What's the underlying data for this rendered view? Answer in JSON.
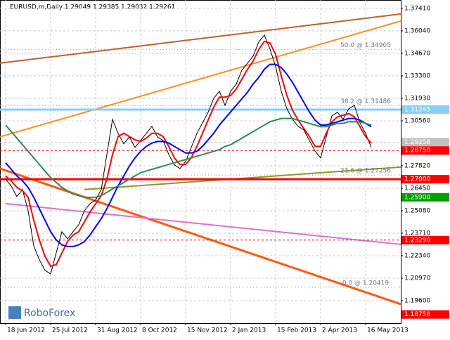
{
  "chart_data": {
    "type": "line",
    "title": "EURUSD,m,Daily  1.29049 1.29385 1.29032 1.29261",
    "logo": "RoboForex",
    "xlim": [
      -1,
      70.25
    ],
    "ylim": [
      1.1823,
      1.3792
    ],
    "grid": true,
    "xticks": [
      {
        "value": 0,
        "label": "18 Jun 2012"
      },
      {
        "value": 8,
        "label": "25 Jul 2012"
      },
      {
        "value": 16,
        "label": "31 Aug 2012"
      },
      {
        "value": 24,
        "label": "8 Oct 2012"
      },
      {
        "value": 32,
        "label": "15 Nov 2012"
      },
      {
        "value": 40,
        "label": "2 Jan 2013"
      },
      {
        "value": 48,
        "label": "15 Feb 2013"
      },
      {
        "value": 56,
        "label": "2 Apr 2013"
      },
      {
        "value": 64,
        "label": "16 May 2013"
      }
    ],
    "yticks": [
      {
        "value": 1.3741,
        "label": "1.37410"
      },
      {
        "value": 1.3604,
        "label": "1.36040"
      },
      {
        "value": 1.3467,
        "label": "1.34670"
      },
      {
        "value": 1.333,
        "label": "1.33300"
      },
      {
        "value": 1.3193,
        "label": "1.31930"
      },
      {
        "value": 1.3056,
        "label": "1.30560"
      },
      {
        "value": 1.2782,
        "label": "1.27820"
      },
      {
        "value": 1.2645,
        "label": "1.26450"
      },
      {
        "value": 1.2508,
        "label": "1.25080"
      },
      {
        "value": 1.2371,
        "label": "1.23710"
      },
      {
        "value": 1.2234,
        "label": "1.22340"
      },
      {
        "value": 1.2097,
        "label": "1.20970"
      },
      {
        "value": 1.196,
        "label": "1.19600"
      }
    ],
    "x": [
      0,
      1,
      2,
      3,
      4,
      5,
      6,
      7,
      8,
      9,
      10,
      11,
      12,
      13,
      14,
      15,
      16,
      17,
      18,
      19,
      20,
      21,
      22,
      23,
      24,
      25,
      26,
      27,
      28,
      29,
      30,
      31,
      32,
      33,
      34,
      35,
      36,
      37,
      38,
      39,
      40,
      41,
      42,
      43,
      44,
      45,
      46,
      47,
      48,
      49,
      50,
      51,
      52,
      53,
      54,
      55,
      56,
      57,
      58,
      59,
      60,
      61,
      62,
      63,
      64,
      65
    ],
    "series": [
      {
        "color": "#000000",
        "values": [
          1.2701,
          1.2658,
          1.2594,
          1.2637,
          1.2508,
          1.2294,
          1.2209,
          1.2145,
          1.2123,
          1.2252,
          1.238,
          1.2337,
          1.238,
          1.2423,
          1.2508,
          1.2551,
          1.2573,
          1.2637,
          1.2851,
          1.3065,
          1.2979,
          1.2915,
          1.2958,
          1.2894,
          1.2936,
          1.2979,
          1.3022,
          1.2958,
          1.2936,
          1.2851,
          1.2787,
          1.2765,
          1.2808,
          1.2894,
          1.2979,
          1.3043,
          1.3108,
          1.3193,
          1.3236,
          1.315,
          1.3236,
          1.3279,
          1.3364,
          1.3407,
          1.345,
          1.3536,
          1.3578,
          1.3493,
          1.3386,
          1.3236,
          1.3129,
          1.3065,
          1.3022,
          1.3001,
          1.2936,
          1.2872,
          1.283,
          1.2958,
          1.3086,
          1.3108,
          1.3065,
          1.3129,
          1.315,
          1.3043,
          1.2979,
          1.2894
        ]
      },
      {
        "color": "#ff0000",
        "values": [
          1.272,
          1.269,
          1.265,
          1.263,
          1.259,
          1.245,
          1.233,
          1.223,
          1.217,
          1.218,
          1.225,
          1.232,
          1.236,
          1.238,
          1.244,
          1.25,
          1.255,
          1.26,
          1.27,
          1.285,
          1.296,
          1.298,
          1.296,
          1.294,
          1.293,
          1.295,
          1.298,
          1.298,
          1.296,
          1.29,
          1.283,
          1.279,
          1.279,
          1.283,
          1.29,
          1.298,
          1.306,
          1.314,
          1.32,
          1.32,
          1.321,
          1.325,
          1.331,
          1.337,
          1.342,
          1.349,
          1.354,
          1.353,
          1.346,
          1.333,
          1.321,
          1.312,
          1.306,
          1.301,
          1.296,
          1.29,
          1.29,
          1.298,
          1.305,
          1.308,
          1.309,
          1.31,
          1.308,
          1.302,
          1.296,
          1.292
        ]
      },
      {
        "color": "#0000ff",
        "values": [
          1.28,
          1.276,
          1.272,
          1.269,
          1.265,
          1.259,
          1.252,
          1.245,
          1.238,
          1.233,
          1.23,
          1.229,
          1.229,
          1.23,
          1.232,
          1.236,
          1.241,
          1.246,
          1.252,
          1.259,
          1.266,
          1.272,
          1.278,
          1.283,
          1.287,
          1.29,
          1.292,
          1.293,
          1.293,
          1.292,
          1.29,
          1.288,
          1.286,
          1.286,
          1.287,
          1.29,
          1.294,
          1.298,
          1.303,
          1.307,
          1.311,
          1.315,
          1.319,
          1.323,
          1.328,
          1.332,
          1.337,
          1.34,
          1.34,
          1.338,
          1.334,
          1.329,
          1.323,
          1.317,
          1.311,
          1.306,
          1.303,
          1.303,
          1.304,
          1.305,
          1.306,
          1.307,
          1.307,
          1.306,
          1.304,
          1.302
        ]
      },
      {
        "color": "#2e8b57",
        "values": [
          1.303,
          1.299,
          1.295,
          1.291,
          1.287,
          1.283,
          1.279,
          1.275,
          1.271,
          1.268,
          1.265,
          1.263,
          1.261,
          1.26,
          1.259,
          1.259,
          1.259,
          1.26,
          1.262,
          1.264,
          1.266,
          1.268,
          1.27,
          1.272,
          1.274,
          1.275,
          1.276,
          1.277,
          1.278,
          1.279,
          1.28,
          1.281,
          1.282,
          1.283,
          1.284,
          1.285,
          1.286,
          1.287,
          1.288,
          1.29,
          1.291,
          1.293,
          1.295,
          1.297,
          1.299,
          1.301,
          1.303,
          1.305,
          1.306,
          1.307,
          1.307,
          1.307,
          1.306,
          1.305,
          1.304,
          1.303,
          1.302,
          1.302,
          1.303,
          1.304,
          1.304,
          1.305,
          1.305,
          1.305,
          1.304,
          1.303
        ]
      }
    ],
    "trendlines": [
      {
        "color": "#c0602a",
        "x": [
          -1,
          70.25
        ],
        "values": [
          1.3407,
          1.3707
        ]
      },
      {
        "color": "#ff9020",
        "x": [
          -1,
          70.25
        ],
        "values": [
          1.2958,
          1.3664
        ]
      },
      {
        "color": "#ff5a10",
        "x": [
          -1,
          70.25
        ],
        "values": [
          1.2765,
          1.1939
        ]
      },
      {
        "color": "#e070d0",
        "x": [
          0,
          70.25
        ],
        "values": [
          1.2551,
          1.2303
        ]
      },
      {
        "color": "#8a9a20",
        "x": [
          14,
          70.25
        ],
        "values": [
          1.2637,
          1.2774
        ]
      }
    ],
    "levels": [
      {
        "value": 1.31245,
        "label": "1.31245",
        "color": "#87cefa",
        "line": "solid"
      },
      {
        "value": 1.29258,
        "label": "1.29258",
        "color": "#c0c0c0",
        "line": "dash"
      },
      {
        "value": 1.2875,
        "label": "1.28750",
        "color": "#ff0000",
        "line": "dash"
      },
      {
        "value": 1.27,
        "label": "1.27000",
        "color": "#ff0000",
        "line": "solid"
      },
      {
        "value": 1.259,
        "label": "1.25900",
        "color": "#00a000",
        "line": "none"
      },
      {
        "value": 1.2329,
        "label": "1.23290",
        "color": "#ff0000",
        "line": "dash"
      },
      {
        "value": 1.18758,
        "label": "1.18758",
        "color": "#ff0000",
        "line": "none"
      }
    ],
    "annotations": [
      {
        "value": 1.34905,
        "label": "50.0 @ 1.34905"
      },
      {
        "value": 1.31486,
        "label": "38.2 @ 1.31486"
      },
      {
        "value": 1.27256,
        "label": "23.6 @ 1.27256"
      },
      {
        "value": 1.20419,
        "label": "0.0 @ 1.20419"
      }
    ]
  }
}
